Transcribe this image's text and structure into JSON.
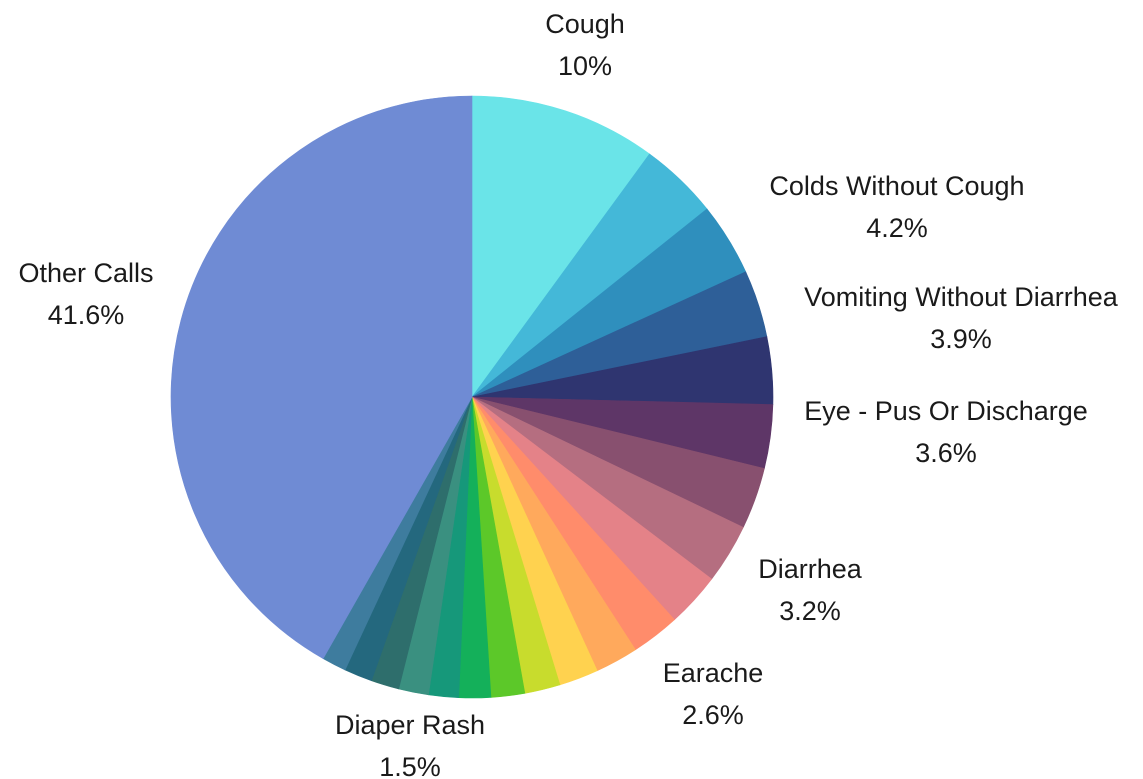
{
  "chart_data": {
    "type": "pie",
    "slices": [
      {
        "label": "Cough",
        "value": 10,
        "value_text": "10%",
        "color": "#6ae4e8",
        "labeled": true
      },
      {
        "label": "Colds Without Cough",
        "value": 4.2,
        "value_text": "4.2%",
        "color": "#44b8d8",
        "labeled": true
      },
      {
        "label": "Vomiting Without Diarrhea",
        "value": 3.9,
        "value_text": "3.9%",
        "color": "#2f8fbd",
        "labeled": true
      },
      {
        "label": "",
        "value": 3.6,
        "value_text": "",
        "color": "#2e5f98",
        "labeled": false
      },
      {
        "label": "Eye - Pus Or Discharge",
        "value": 3.6,
        "value_text": "3.6%",
        "color": "#2f3570",
        "labeled": true
      },
      {
        "label": "",
        "value": 3.4,
        "value_text": "",
        "color": "#5e3667",
        "labeled": false
      },
      {
        "label": "",
        "value": 3.3,
        "value_text": "",
        "color": "#88506f",
        "labeled": false
      },
      {
        "label": "Diarrhea",
        "value": 3.2,
        "value_text": "3.2%",
        "color": "#b56e80",
        "labeled": true
      },
      {
        "label": "",
        "value": 2.9,
        "value_text": "",
        "color": "#e48288",
        "labeled": false
      },
      {
        "label": "Earache",
        "value": 2.6,
        "value_text": "2.6%",
        "color": "#ff8c6b",
        "labeled": true
      },
      {
        "label": "",
        "value": 2.3,
        "value_text": "",
        "color": "#ffa95c",
        "labeled": false
      },
      {
        "label": "",
        "value": 2.1,
        "value_text": "",
        "color": "#ffd24f",
        "labeled": false
      },
      {
        "label": "",
        "value": 1.9,
        "value_text": "",
        "color": "#c8dc2d",
        "labeled": false
      },
      {
        "label": "",
        "value": 1.8,
        "value_text": "",
        "color": "#5cc829",
        "labeled": false
      },
      {
        "label": "",
        "value": 1.7,
        "value_text": "",
        "color": "#14b05a",
        "labeled": false
      },
      {
        "label": "",
        "value": 1.6,
        "value_text": "",
        "color": "#16987a",
        "labeled": false
      },
      {
        "label": "",
        "value": 1.6,
        "value_text": "",
        "color": "#3a9080",
        "labeled": false
      },
      {
        "label": "Diaper Rash",
        "value": 1.5,
        "value_text": "1.5%",
        "color": "#2e6e6c",
        "labeled": true
      },
      {
        "label": "",
        "value": 1.5,
        "value_text": "",
        "color": "#24687e",
        "labeled": false
      },
      {
        "label": "",
        "value": 1.3,
        "value_text": "",
        "color": "#3e7c9e",
        "labeled": false
      },
      {
        "label": "Other Calls",
        "value": 41.6,
        "value_text": "41.6%",
        "color": "#6f8bd4",
        "labeled": true
      }
    ]
  }
}
